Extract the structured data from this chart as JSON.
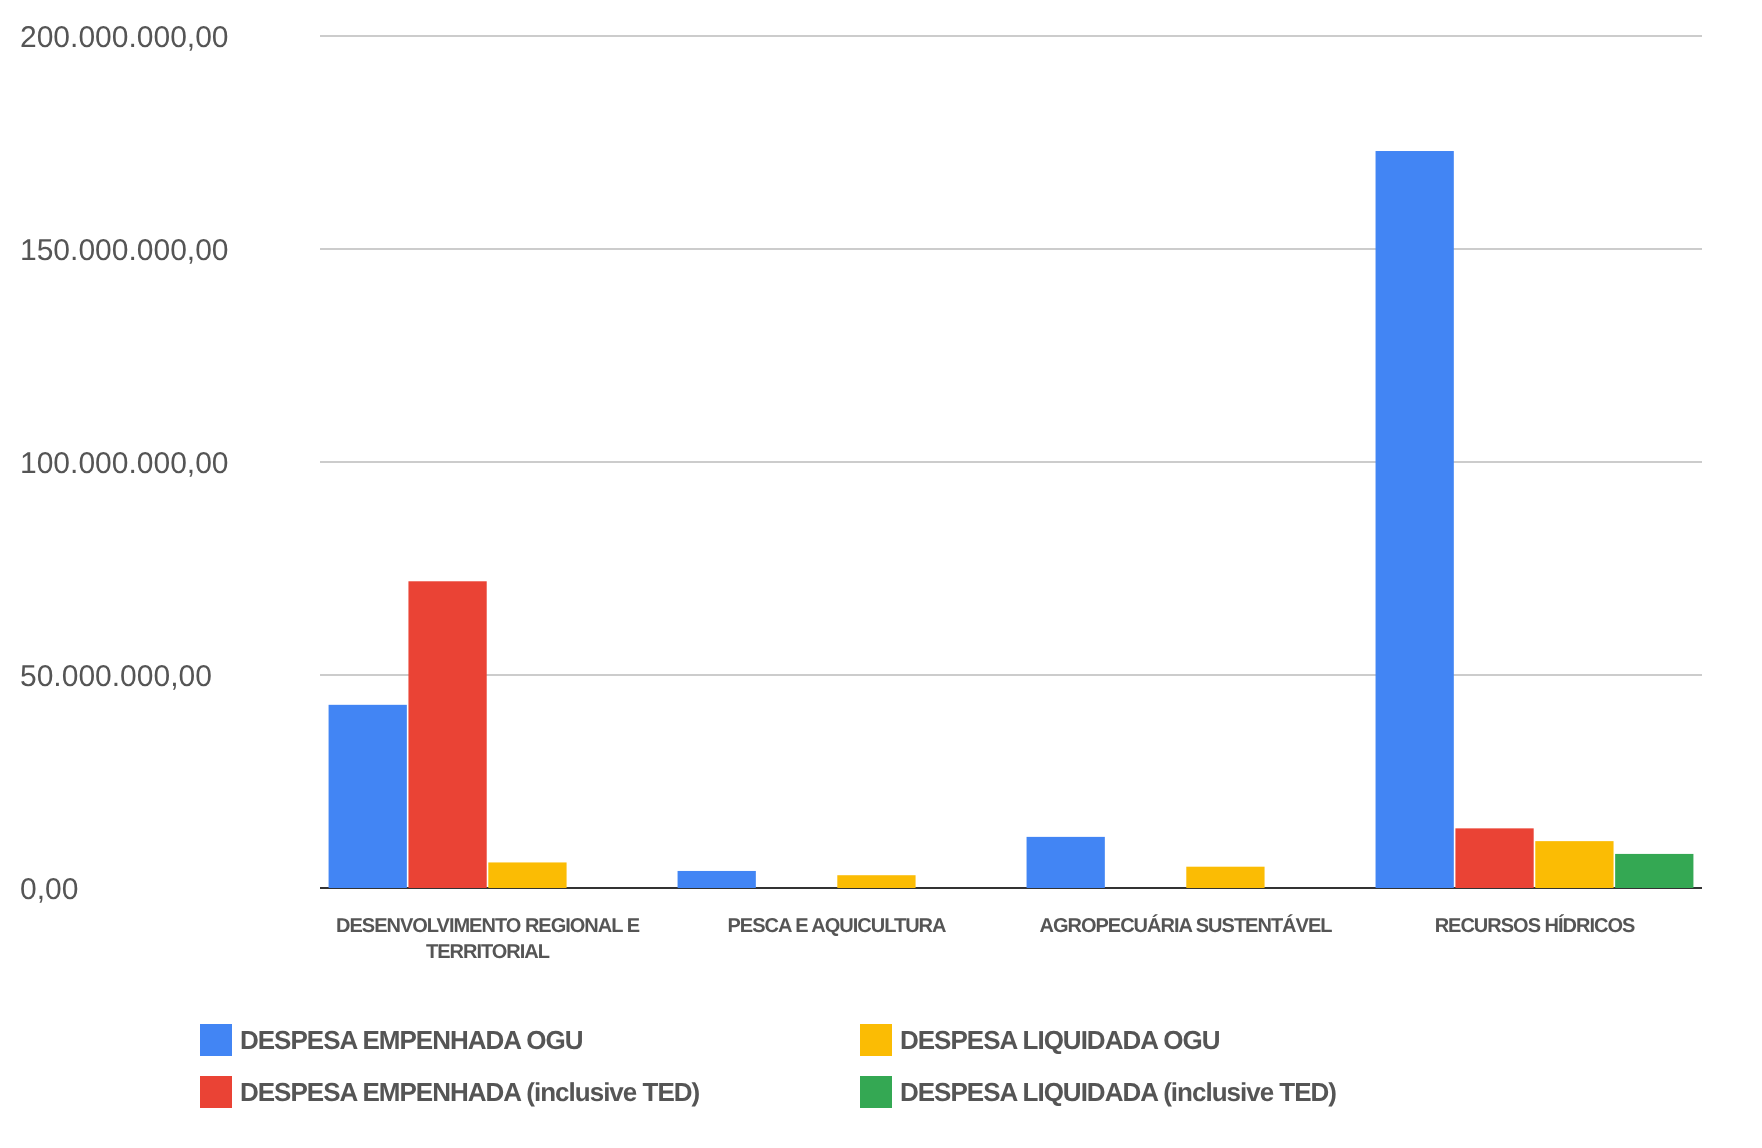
{
  "chart_data": {
    "type": "bar",
    "categories": [
      "DESENVOLVIMENTO REGIONAL E TERRITORIAL",
      "PESCA E AQUICULTURA",
      "AGROPECUÁRIA SUSTENTÁVEL",
      "RECURSOS HÍDRICOS"
    ],
    "series": [
      {
        "name": "DESPESA EMPENHADA OGU",
        "color": "#4285f4",
        "values": [
          43000000,
          4000000,
          12000000,
          173000000
        ]
      },
      {
        "name": "DESPESA EMPENHADA (inclusive TED)",
        "color": "#ea4335",
        "values": [
          72000000,
          0,
          0,
          14000000
        ]
      },
      {
        "name": "DESPESA LIQUIDADA OGU",
        "color": "#fbbc04",
        "values": [
          6000000,
          3000000,
          5000000,
          11000000
        ]
      },
      {
        "name": "DESPESA LIQUIDADA (inclusive TED)",
        "color": "#34a853",
        "values": [
          0,
          0,
          0,
          8000000
        ]
      }
    ],
    "ylim": [
      0,
      200000000
    ],
    "yticks": [
      {
        "value": 0,
        "label": "0,00"
      },
      {
        "value": 50000000,
        "label": "50.000.000,00"
      },
      {
        "value": 100000000,
        "label": "100.000.000,00"
      },
      {
        "value": 150000000,
        "label": "150.000.000,00"
      },
      {
        "value": 200000000,
        "label": "200.000.000,00"
      }
    ],
    "grid": "y",
    "legend": "bottom"
  }
}
